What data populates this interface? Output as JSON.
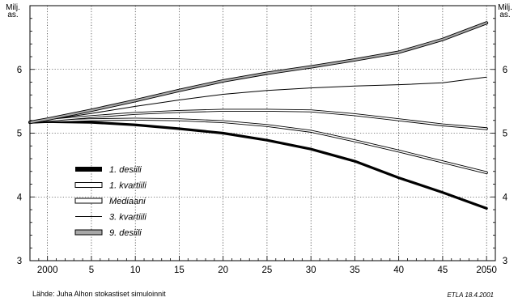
{
  "chart_data": {
    "type": "line",
    "ylabel_left": [
      "Milj.",
      "as."
    ],
    "ylabel_right": [
      "Milj.",
      "as."
    ],
    "xlim": [
      1998,
      2051
    ],
    "ylim": [
      3,
      7
    ],
    "x_ticks": [
      2000,
      2005,
      2010,
      2015,
      2020,
      2025,
      2030,
      2035,
      2040,
      2045,
      2050
    ],
    "x_tick_labels": [
      "2000",
      "5",
      "10",
      "15",
      "20",
      "25",
      "30",
      "35",
      "40",
      "45",
      "2050"
    ],
    "y_ticks": [
      3,
      4,
      5,
      6
    ],
    "y_tick_labels": [
      "3",
      "4",
      "5",
      "6"
    ],
    "grid": true,
    "legend_position": "lower-left",
    "series": [
      {
        "name": "1. desiili",
        "style": "thick-black",
        "x": [
          1998,
          2000,
          2005,
          2010,
          2015,
          2020,
          2025,
          2030,
          2035,
          2040,
          2045,
          2050
        ],
        "y": [
          5.17,
          5.18,
          5.17,
          5.13,
          5.07,
          5.0,
          4.89,
          4.75,
          4.56,
          4.3,
          4.07,
          3.82
        ]
      },
      {
        "name": "1. kvartiili",
        "style": "double-line",
        "x": [
          1998,
          2000,
          2005,
          2010,
          2015,
          2020,
          2025,
          2030,
          2035,
          2040,
          2045,
          2050
        ],
        "y": [
          5.17,
          5.19,
          5.21,
          5.22,
          5.21,
          5.18,
          5.12,
          5.03,
          4.88,
          4.72,
          4.55,
          4.38
        ]
      },
      {
        "name": "Mediaani",
        "style": "double-line",
        "x": [
          1998,
          2000,
          2005,
          2010,
          2015,
          2020,
          2025,
          2030,
          2035,
          2040,
          2045,
          2050
        ],
        "y": [
          5.17,
          5.2,
          5.26,
          5.31,
          5.34,
          5.36,
          5.36,
          5.35,
          5.29,
          5.21,
          5.13,
          5.07
        ]
      },
      {
        "name": "3. kvartiili",
        "style": "thin",
        "x": [
          1998,
          2000,
          2005,
          2010,
          2015,
          2020,
          2025,
          2030,
          2035,
          2040,
          2045,
          2050
        ],
        "y": [
          5.17,
          5.21,
          5.31,
          5.42,
          5.52,
          5.61,
          5.67,
          5.71,
          5.74,
          5.76,
          5.79,
          5.88
        ]
      },
      {
        "name": "9. desiili",
        "style": "gray-fill",
        "x": [
          1998,
          2000,
          2005,
          2010,
          2015,
          2020,
          2025,
          2030,
          2035,
          2040,
          2045,
          2050
        ],
        "y": [
          5.17,
          5.22,
          5.36,
          5.51,
          5.67,
          5.82,
          5.94,
          6.04,
          6.15,
          6.27,
          6.47,
          6.73
        ]
      }
    ]
  },
  "footer": {
    "source": "Lähde: Juha Alhon stokastiset simuloinnit",
    "credit": "ETLA 18.4.2001"
  },
  "colors": {
    "line": "#000000",
    "gray_fill": "#a8a8a8",
    "grid": "#000000"
  }
}
